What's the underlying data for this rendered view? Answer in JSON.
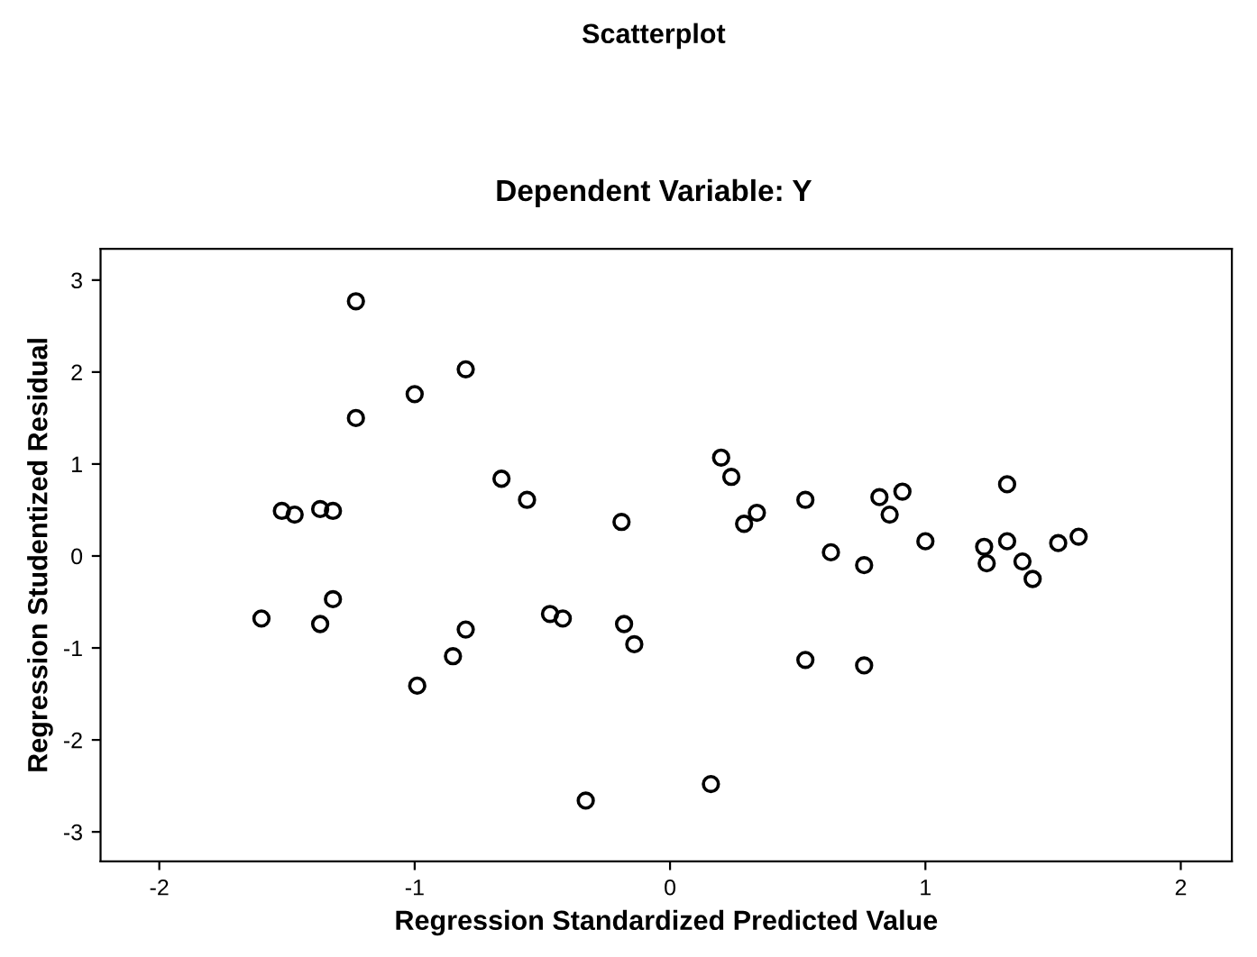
{
  "chart_data": {
    "type": "scatter",
    "title": "Scatterplot",
    "subtitle": "Dependent Variable: Y",
    "xlabel": "Regression Standardized Predicted Value",
    "ylabel": "Regression Studentized Residual",
    "x": [
      -1.23,
      -1.0,
      -0.8,
      -1.23,
      -0.66,
      -0.56,
      -0.19,
      -1.52,
      -1.47,
      -1.37,
      -1.32,
      0.2,
      0.24,
      0.29,
      0.34,
      0.53,
      0.63,
      0.76,
      0.82,
      0.91,
      0.86,
      1.0,
      1.32,
      1.23,
      1.24,
      1.32,
      1.38,
      1.42,
      1.52,
      1.6,
      -1.6,
      -1.37,
      -1.32,
      -0.99,
      -0.85,
      -0.8,
      -0.47,
      -0.42,
      -0.33,
      -0.18,
      -0.14,
      0.53,
      0.76,
      0.16
    ],
    "values": [
      2.77,
      1.76,
      2.03,
      1.5,
      0.84,
      0.61,
      0.37,
      0.49,
      0.45,
      0.51,
      0.49,
      1.07,
      0.86,
      0.35,
      0.47,
      0.61,
      0.04,
      -0.1,
      0.64,
      0.7,
      0.45,
      0.16,
      0.78,
      0.1,
      -0.08,
      0.16,
      -0.06,
      -0.25,
      0.14,
      0.21,
      -0.68,
      -0.74,
      -0.47,
      -1.41,
      -1.09,
      -0.8,
      -0.63,
      -0.68,
      -2.66,
      -0.74,
      -0.96,
      -1.13,
      -1.19,
      -2.48
    ],
    "color": "#000000",
    "marker": "circle",
    "xlim": [
      -2.23,
      2.2
    ],
    "ylim": [
      -3.32,
      3.34
    ],
    "xticks": [
      -2,
      -1,
      0,
      1,
      2
    ],
    "yticks": [
      -3,
      -2,
      -1,
      0,
      1,
      2,
      3
    ],
    "grid": false
  }
}
